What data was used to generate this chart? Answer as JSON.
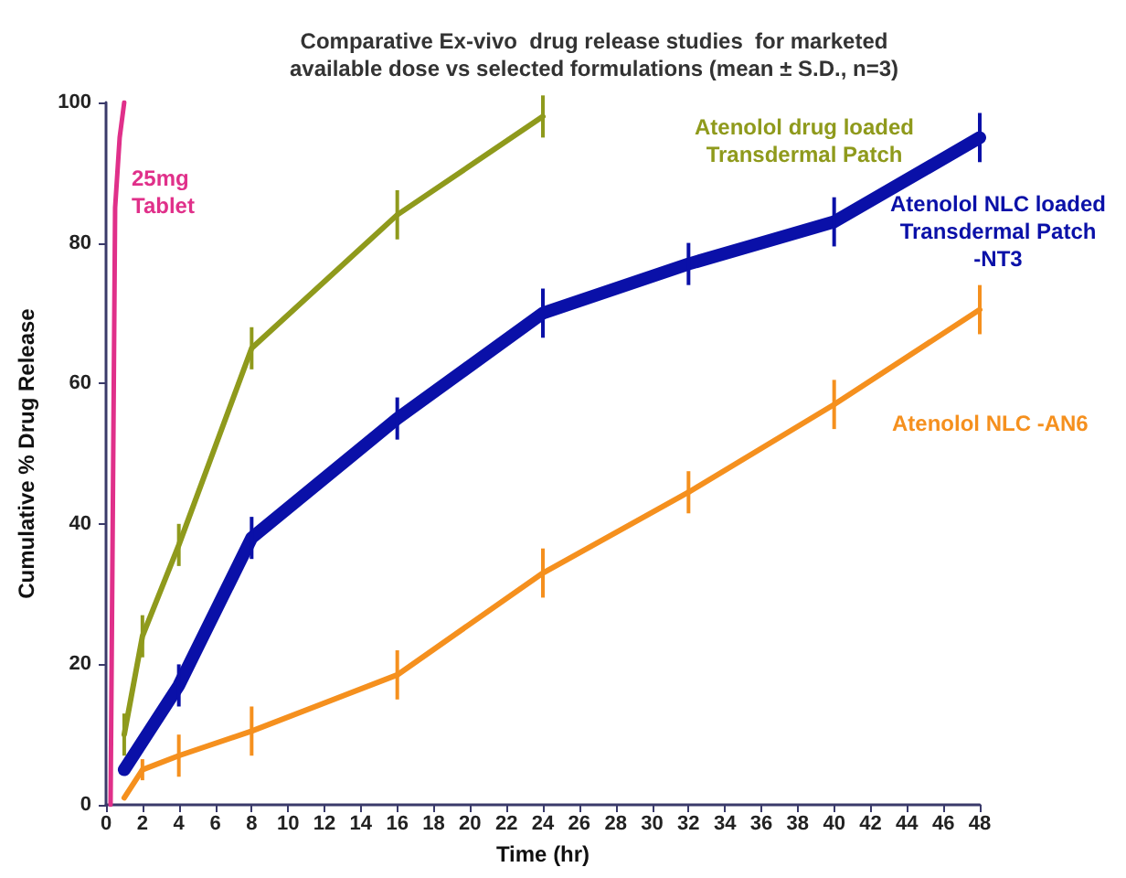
{
  "chart_data": {
    "type": "line",
    "title": "Comparative Ex-vivo  drug release studies  for marketed\navailable dose vs selected formulations (mean ± S.D., n=3)",
    "xlabel": "Time (hr)",
    "ylabel": "Cumulative % Drug Release",
    "xlim": [
      0,
      48
    ],
    "xticks": [
      0,
      2,
      4,
      6,
      8,
      10,
      12,
      14,
      16,
      18,
      20,
      22,
      24,
      26,
      28,
      30,
      32,
      34,
      36,
      38,
      40,
      42,
      44,
      46,
      48
    ],
    "ylim": [
      0,
      100
    ],
    "yticks": [
      0,
      20,
      40,
      60,
      80,
      100
    ],
    "grid": false,
    "legend": false,
    "marker": "none",
    "line_style": "solid",
    "series": [
      {
        "name": "25mg\nTablet",
        "color": "#e0308a",
        "x": [
          0.25,
          0.5,
          0.75,
          1
        ],
        "values": [
          0,
          85,
          95,
          100
        ]
      },
      {
        "name": "Atenolol drug loaded\nTransdermal Patch",
        "color": "#8f9a1c",
        "x": [
          1,
          2,
          4,
          8,
          16,
          24
        ],
        "values": [
          10,
          24,
          37,
          65,
          84,
          98
        ],
        "errors": [
          3,
          3,
          3,
          3,
          3.5,
          3
        ]
      },
      {
        "name": "Atenolol NLC loaded\nTransdermal Patch\n-NT3",
        "color": "#0a10a8",
        "x": [
          1,
          4,
          8,
          16,
          24,
          32,
          40,
          48
        ],
        "values": [
          5,
          17,
          38,
          55,
          70,
          77,
          83,
          95
        ],
        "errors": [
          null,
          3,
          3,
          3,
          3.5,
          3,
          3.5,
          3.5
        ]
      },
      {
        "name": "Atenolol NLC -AN6",
        "color": "#f5901e",
        "x": [
          1,
          2,
          4,
          8,
          16,
          24,
          32,
          40,
          48
        ],
        "values": [
          1,
          5,
          7,
          10.5,
          18.5,
          33,
          44.5,
          57,
          70.5
        ],
        "errors": [
          null,
          1.5,
          3,
          3.5,
          3.5,
          3.5,
          3,
          3.5,
          3.5
        ]
      }
    ]
  }
}
